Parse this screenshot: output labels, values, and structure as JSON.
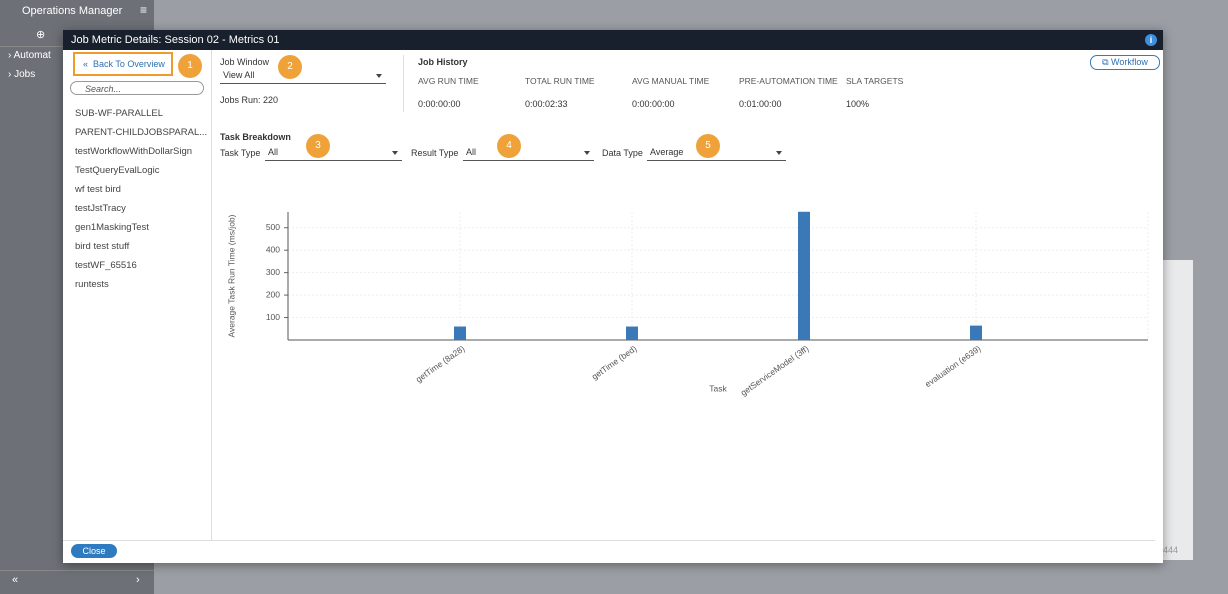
{
  "sidebar": {
    "title": "Operations Manager",
    "items": [
      "Automat",
      "Jobs"
    ],
    "background_number": "444"
  },
  "modal": {
    "title": "Job Metric Details: Session 02 - Metrics 01",
    "back": "Back To Overview",
    "search_placeholder": "Search...",
    "jobs": [
      "SUB-WF-PARALLEL",
      "PARENT-CHILDJOBSPARAL...",
      "testWorkflowWithDollarSign",
      "TestQueryEvalLogic",
      "wf test bird",
      "testJstTracy",
      "gen1MaskingTest",
      "bird test stuff",
      "testWF_65516",
      "runtests"
    ],
    "close": "Close",
    "workflow": "Workflow"
  },
  "job_window": {
    "label": "Job Window",
    "value": "View All",
    "jobs_run_label": "Jobs Run:",
    "jobs_run": 220
  },
  "job_history": {
    "title": "Job History",
    "columns": [
      "AVG RUN TIME",
      "TOTAL RUN TIME",
      "AVG MANUAL TIME",
      "PRE-AUTOMATION TIME",
      "SLA TARGETS"
    ],
    "values": [
      "0:00:00:00",
      "0:00:02:33",
      "0:00:00:00",
      "0:01:00:00",
      "100%"
    ]
  },
  "task_breakdown": {
    "title": "Task Breakdown",
    "filters": [
      {
        "label": "Task Type",
        "value": "All"
      },
      {
        "label": "Result Type",
        "value": "All"
      },
      {
        "label": "Data Type",
        "value": "Average"
      }
    ]
  },
  "callouts": [
    1,
    2,
    3,
    4,
    5
  ],
  "chart_data": {
    "type": "bar",
    "x_label": "Task",
    "y_label": "Average Task Run Time (ms/job)",
    "categories": [
      "getTime (8a28)",
      "getTime (bed)",
      "getServiceModel (3ff)",
      "evaluation (e639)"
    ],
    "values": [
      60,
      60,
      571,
      64
    ],
    "color": "#3a78b8",
    "ylim": [
      0,
      570
    ],
    "yticks": [
      100,
      200,
      300,
      400,
      500
    ],
    "grid": true
  }
}
